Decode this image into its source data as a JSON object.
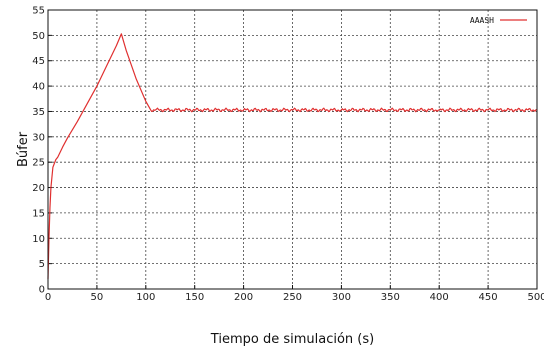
{
  "chart_data": {
    "type": "line",
    "title": "",
    "xlabel": "Tiempo de simulación (s)",
    "ylabel": "Búfer",
    "xlim": [
      0,
      500
    ],
    "ylim": [
      0,
      55
    ],
    "xticks": [
      0,
      50,
      100,
      150,
      200,
      250,
      300,
      350,
      400,
      450,
      500
    ],
    "yticks": [
      0,
      5,
      10,
      15,
      20,
      25,
      30,
      35,
      40,
      45,
      50,
      55
    ],
    "grid": true,
    "legend_position": "top-right",
    "series": [
      {
        "name": "AAASH",
        "color": "#e03030",
        "x": [
          0,
          1,
          2,
          3,
          5,
          8,
          10,
          15,
          20,
          30,
          40,
          50,
          60,
          70,
          75,
          80,
          90,
          100,
          105,
          110,
          150,
          200,
          250,
          300,
          350,
          400,
          450,
          500
        ],
        "y": [
          2,
          10,
          16,
          20,
          24,
          25.5,
          26,
          28,
          29.8,
          33,
          36.5,
          40,
          44,
          48,
          50.3,
          47,
          41.5,
          37,
          35.3,
          35.3,
          35.3,
          35.3,
          35.3,
          35.3,
          35.3,
          35.3,
          35.3,
          35.3
        ]
      }
    ]
  }
}
